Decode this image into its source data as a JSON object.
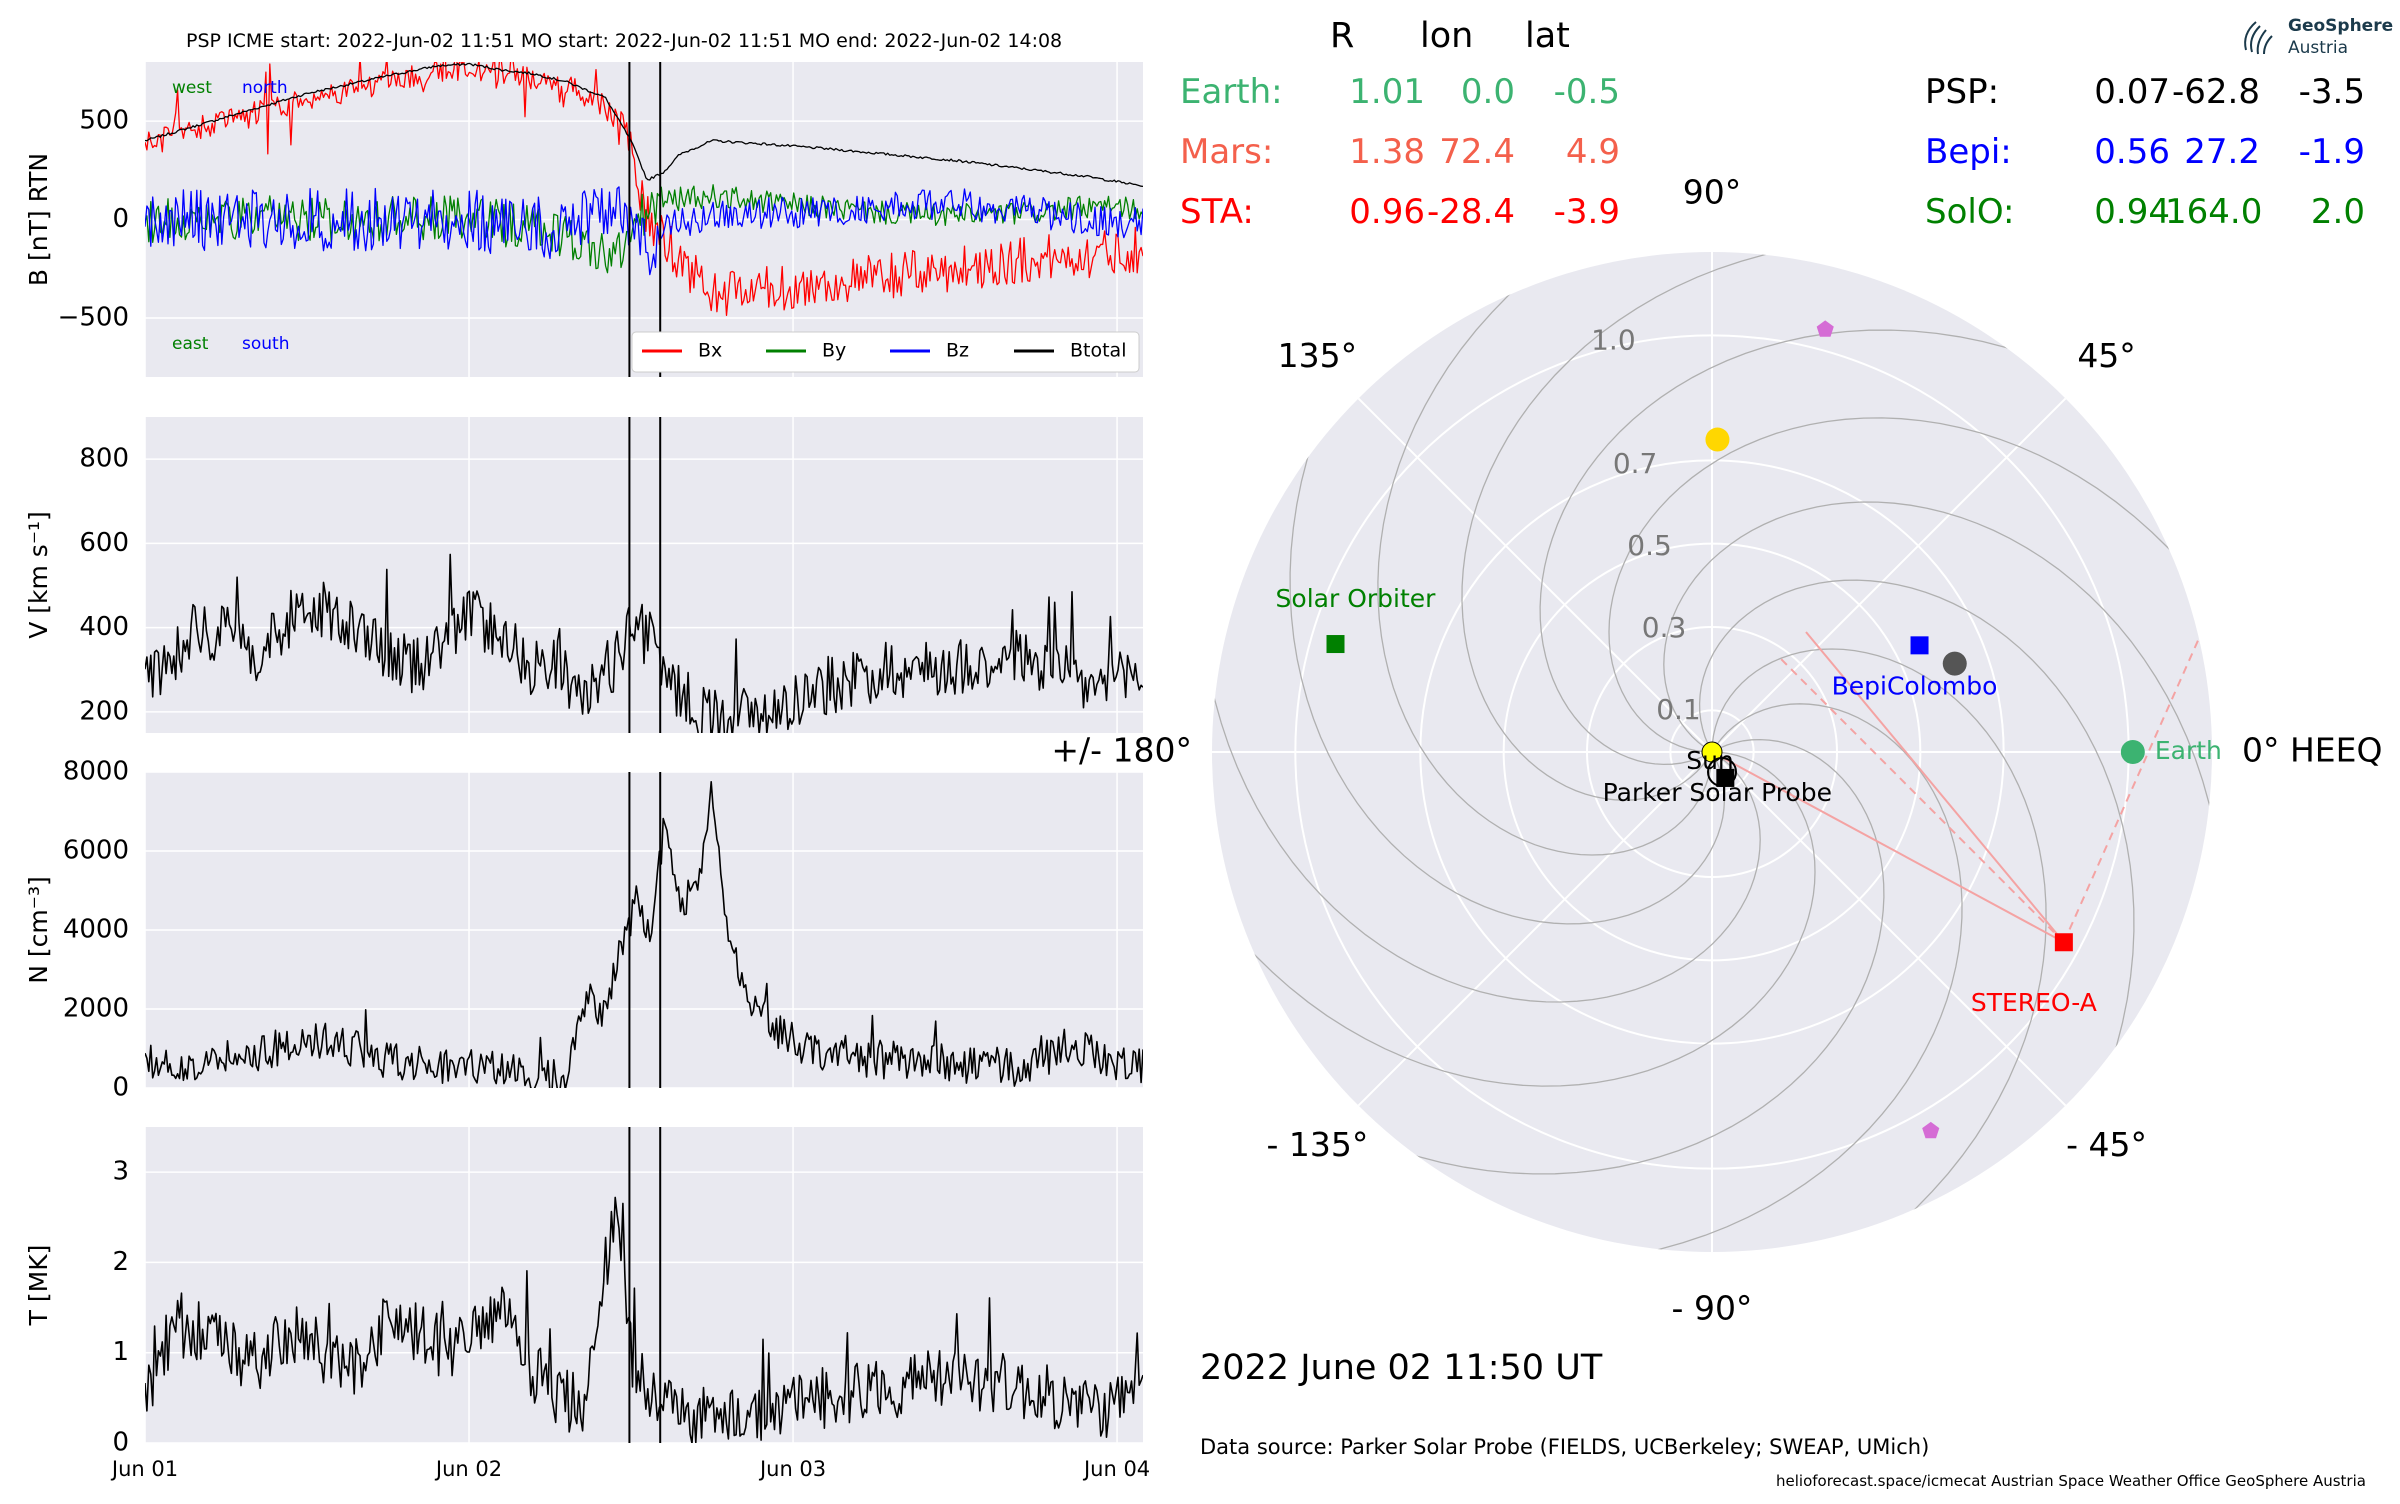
{
  "header": {
    "title": "PSP    ICME start: 2022-Jun-02 11:51   MO start: 2022-Jun-02 11:51   MO end: 2022-Jun-02 14:08"
  },
  "positions_table": {
    "columns": [
      "R",
      "lon",
      "lat"
    ],
    "left_rows": [
      {
        "name": "Earth:",
        "R": "1.01",
        "lon": "0.0",
        "lat": "-0.5",
        "color": "#3cb371"
      },
      {
        "name": "Mars:",
        "R": "1.38",
        "lon": "72.4",
        "lat": "4.9",
        "color": "#f4604c"
      },
      {
        "name": "STA:",
        "R": "0.96",
        "lon": "-28.4",
        "lat": "-3.9",
        "color": "#ff0000"
      }
    ],
    "right_rows": [
      {
        "name": "PSP:",
        "R": "0.07",
        "lon": "-62.8",
        "lat": "-3.5",
        "color": "#000000"
      },
      {
        "name": "Bepi:",
        "R": "0.56",
        "lon": "27.2",
        "lat": "-1.9",
        "color": "#0000ff"
      },
      {
        "name": "SolO:",
        "R": "0.94",
        "lon": "164.0",
        "lat": "2.0",
        "color": "#008000"
      }
    ]
  },
  "logo": {
    "line1": "GeoSphere",
    "line2": "Austria"
  },
  "date_label": "2022 June 02  11:50 UT",
  "data_source": "Data source: Parker Solar Probe (FIELDS, UCBerkeley; SWEAP, UMich)",
  "footer": "helioforecast.space/icmecat   Austrian Space Weather Office   GeoSphere Austria",
  "colors": {
    "panel_bg": "#e9e9f0",
    "grid": "#ffffff",
    "bx": "#ff0000",
    "by": "#008000",
    "bz": "#0000ff",
    "btotal": "#000000",
    "earth": "#3cb371",
    "sta": "#ff0000",
    "bepi": "#0000ff",
    "solo": "#008000",
    "sun": "#ffd700",
    "psp": "#000000",
    "mars": "#d56cd5",
    "spiral": "#b0b0b0"
  },
  "chart_data": [
    {
      "type": "line",
      "ylabel": "B [nT] RTN",
      "ylim": [
        -800,
        800
      ],
      "yticks": [
        500,
        0,
        -500
      ],
      "ytick_labels": [
        "500",
        "0",
        "−500"
      ],
      "xticks": [
        "Jun 01",
        "Jun 02",
        "Jun 03",
        "Jun 04"
      ],
      "xlim_days": [
        0,
        3.08
      ],
      "annotations": {
        "west": "west",
        "north": "north",
        "east": "east",
        "south": "south"
      },
      "legend": {
        "placement": "lower right",
        "entries": [
          "Bx",
          "By",
          "Bz",
          "Btotal"
        ]
      },
      "vlines_days": [
        1.495,
        1.59
      ],
      "series": [
        {
          "name": "Btotal",
          "color": "#000000",
          "x": [
            0,
            0.25,
            0.5,
            0.75,
            0.9,
            1.0,
            1.1,
            1.2,
            1.3,
            1.42,
            1.5,
            1.55,
            1.6,
            1.65,
            1.75,
            1.9,
            2.1,
            2.3,
            2.5,
            2.7,
            2.9,
            3.08
          ],
          "y": [
            400,
            520,
            640,
            730,
            780,
            790,
            760,
            740,
            700,
            620,
            400,
            200,
            240,
            330,
            400,
            385,
            360,
            330,
            300,
            260,
            220,
            170
          ]
        },
        {
          "name": "Bx",
          "color": "#ff0000",
          "x": [
            0,
            0.25,
            0.5,
            0.75,
            0.9,
            1.0,
            1.1,
            1.2,
            1.3,
            1.42,
            1.5,
            1.55,
            1.6,
            1.65,
            1.75,
            1.9,
            2.1,
            2.3,
            2.5,
            2.7,
            2.9,
            3.08
          ],
          "y": [
            390,
            500,
            610,
            700,
            750,
            770,
            740,
            720,
            680,
            580,
            350,
            0,
            -100,
            -200,
            -380,
            -360,
            -330,
            -290,
            -250,
            -210,
            -180,
            -150
          ]
        },
        {
          "name": "By",
          "color": "#008000",
          "x": [
            0,
            0.25,
            0.5,
            0.75,
            1.0,
            1.25,
            1.45,
            1.55,
            1.62,
            1.75,
            1.9,
            2.1,
            2.3,
            2.5,
            2.7,
            2.9,
            3.08
          ],
          "y": [
            0,
            0,
            0,
            0,
            0,
            -50,
            -200,
            50,
            100,
            120,
            90,
            60,
            30,
            20,
            30,
            60,
            60
          ]
        },
        {
          "name": "Bz",
          "color": "#0000ff",
          "x": [
            0,
            0.25,
            0.5,
            0.75,
            1.0,
            1.25,
            1.45,
            1.55,
            1.62,
            1.75,
            1.9,
            2.1,
            2.3,
            2.5,
            2.7,
            2.9,
            3.08
          ],
          "y": [
            0,
            0,
            0,
            0,
            0,
            -50,
            100,
            -150,
            -30,
            10,
            30,
            40,
            60,
            80,
            50,
            0,
            -20
          ]
        }
      ]
    },
    {
      "type": "line",
      "ylabel": "V [km s⁻¹]",
      "ylim": [
        150,
        900
      ],
      "yticks": [
        800,
        600,
        400,
        200
      ],
      "xticks": [
        "Jun 01",
        "Jun 02",
        "Jun 03",
        "Jun 04"
      ],
      "vlines_days": [
        1.495,
        1.59
      ],
      "series": [
        {
          "name": "V",
          "color": "#000000",
          "x": [
            0,
            0.08,
            0.15,
            0.25,
            0.35,
            0.45,
            0.55,
            0.65,
            0.75,
            0.85,
            0.95,
            1.0,
            1.1,
            1.2,
            1.28,
            1.33,
            1.38,
            1.45,
            1.5,
            1.55,
            1.6,
            1.7,
            1.8,
            1.9,
            2.0,
            2.1,
            2.2,
            2.3,
            2.4,
            2.5,
            2.6,
            2.7,
            2.8,
            2.9,
            3.0,
            3.08
          ],
          "y": [
            280,
            330,
            400,
            380,
            340,
            420,
            440,
            390,
            330,
            310,
            400,
            430,
            390,
            300,
            330,
            220,
            260,
            320,
            400,
            380,
            300,
            190,
            200,
            190,
            230,
            260,
            280,
            300,
            300,
            310,
            320,
            330,
            300,
            260,
            270,
            300
          ]
        }
      ]
    },
    {
      "type": "line",
      "ylabel": "N [cm⁻³]",
      "ylim": [
        0,
        8000
      ],
      "yticks": [
        8000,
        6000,
        4000,
        2000,
        0
      ],
      "xticks": [
        "Jun 01",
        "Jun 02",
        "Jun 03",
        "Jun 04"
      ],
      "vlines_days": [
        1.495,
        1.59
      ],
      "series": [
        {
          "name": "N",
          "color": "#000000",
          "x": [
            0,
            0.1,
            0.2,
            0.3,
            0.4,
            0.5,
            0.6,
            0.7,
            0.8,
            0.9,
            1.0,
            1.1,
            1.2,
            1.3,
            1.35,
            1.42,
            1.47,
            1.52,
            1.56,
            1.6,
            1.65,
            1.7,
            1.75,
            1.8,
            1.85,
            1.9,
            2.0,
            2.1,
            2.3,
            2.5,
            2.7,
            2.8,
            2.9,
            3.0,
            3.08
          ],
          "y": [
            700,
            500,
            600,
            800,
            1000,
            1200,
            1100,
            800,
            700,
            600,
            500,
            400,
            400,
            300,
            2200,
            2000,
            3500,
            4800,
            4000,
            6500,
            4500,
            5000,
            7500,
            4000,
            2500,
            1800,
            1200,
            900,
            700,
            600,
            500,
            800,
            1000,
            700,
            600
          ]
        }
      ]
    },
    {
      "type": "line",
      "ylabel": "T [MK]",
      "ylim": [
        0,
        3.5
      ],
      "yticks": [
        3,
        2,
        1,
        0
      ],
      "xticks": [
        "Jun 01",
        "Jun 02",
        "Jun 03",
        "Jun 04"
      ],
      "vlines_days": [
        1.495,
        1.59
      ],
      "series": [
        {
          "name": "T",
          "color": "#000000",
          "x": [
            0,
            0.08,
            0.15,
            0.25,
            0.35,
            0.45,
            0.55,
            0.65,
            0.75,
            0.85,
            0.95,
            1.0,
            1.1,
            1.2,
            1.28,
            1.35,
            1.4,
            1.45,
            1.5,
            1.55,
            1.6,
            1.7,
            1.8,
            1.9,
            2.0,
            2.1,
            2.2,
            2.3,
            2.4,
            2.5,
            2.6,
            2.7,
            2.8,
            2.9,
            3.0,
            3.08
          ],
          "y": [
            0.5,
            1.2,
            1.3,
            1.0,
            0.9,
            1.2,
            1.0,
            0.8,
            1.4,
            1.2,
            1.0,
            1.2,
            1.4,
            0.8,
            0.5,
            0.4,
            1.6,
            2.5,
            1.0,
            0.6,
            0.4,
            0.3,
            0.3,
            0.3,
            0.4,
            0.5,
            0.6,
            0.6,
            0.7,
            0.7,
            0.7,
            0.6,
            0.5,
            0.4,
            0.4,
            0.6
          ]
        }
      ]
    },
    {
      "type": "scatter",
      "subtype": "polar",
      "angle_labels": [
        "90°",
        "45°",
        "0° HEEQ",
        "- 45°",
        "- 90°",
        "- 135°",
        "+/- 180°",
        "135°"
      ],
      "radial_ticks": [
        0.1,
        0.3,
        0.5,
        0.7,
        1.0
      ],
      "radial_tick_labels": [
        "0.1",
        "0.3",
        "0.5",
        "0.7",
        "1.0"
      ],
      "rlim": [
        0,
        1.2
      ],
      "grid": true,
      "points": [
        {
          "label": "Earth",
          "r": 1.01,
          "lon": 0.0,
          "color": "#3cb371",
          "marker": "circle"
        },
        {
          "label": "STEREO-A",
          "r": 0.96,
          "lon": -28.4,
          "color": "#ff0000",
          "marker": "square"
        },
        {
          "label": "BepiColombo",
          "r": 0.56,
          "lon": 27.2,
          "color": "#0000ff",
          "marker": "square"
        },
        {
          "label": "Solar Orbiter",
          "r": 0.94,
          "lon": 164.0,
          "color": "#008000",
          "marker": "square"
        },
        {
          "label": "Parker Solar Probe",
          "r": 0.07,
          "lon": -62.8,
          "color": "#000000",
          "marker": "square"
        },
        {
          "label": "Sun",
          "r": 0.0,
          "lon": 0.0,
          "color": "#ffff00",
          "marker": "circle"
        },
        {
          "label": "",
          "r": 0.62,
          "lon": 20.0,
          "color": "#555555",
          "marker": "circle"
        },
        {
          "label": "",
          "r": 0.75,
          "lon": 89.0,
          "color": "#ffd700",
          "marker": "circle"
        },
        {
          "label": "",
          "r": 1.05,
          "lon": 75.0,
          "color": "#d56cd5",
          "marker": "pentagon"
        },
        {
          "label": "",
          "r": 1.05,
          "lon": -60.0,
          "color": "#d56cd5",
          "marker": "pentagon"
        }
      ]
    }
  ]
}
